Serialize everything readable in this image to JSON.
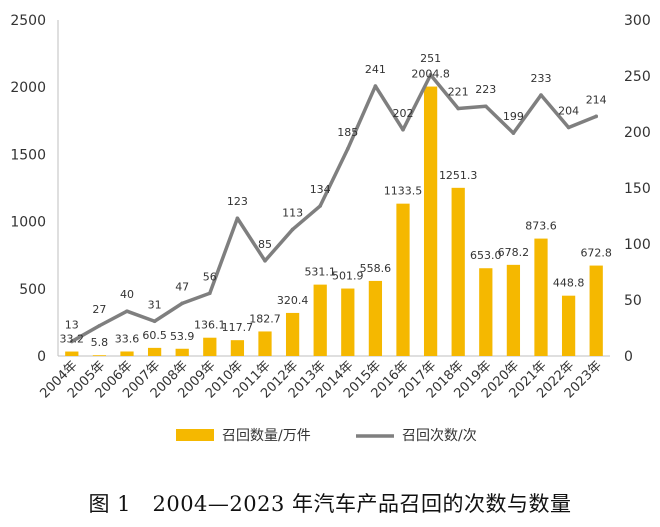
{
  "caption": "图 1　2004—2023 年汽车产品召回的次数与数量",
  "chart_data": {
    "type": "bar",
    "categories": [
      "2004年",
      "2005年",
      "2006年",
      "2007年",
      "2008年",
      "2009年",
      "2010年",
      "2011年",
      "2012年",
      "2013年",
      "2014年",
      "2015年",
      "2016年",
      "2017年",
      "2018年",
      "2019年",
      "2020年",
      "2021年",
      "2022年",
      "2023年"
    ],
    "series": [
      {
        "name": "召回数量/万件",
        "type": "bar",
        "axis": "left",
        "color": "#F5B800",
        "values": [
          33.2,
          5.8,
          33.6,
          60.5,
          53.9,
          136.1,
          117.7,
          182.7,
          320.4,
          531.1,
          501.9,
          558.6,
          1133.5,
          2004.8,
          1251.3,
          653.0,
          678.2,
          873.6,
          448.8,
          672.8
        ],
        "labels": [
          "33.2",
          "5.8",
          "33.6",
          "60.5",
          "53.9",
          "136.1",
          "117.7",
          "182.7",
          "320.4",
          "531.1",
          "501.9",
          "558.6",
          "1133.5",
          "2004.8",
          "1251.3",
          "653.0",
          "678.2",
          "873.6",
          "448.8",
          "672.8"
        ]
      },
      {
        "name": "召回次数/次",
        "type": "line",
        "axis": "right",
        "color": "#7F7F7F",
        "values": [
          13,
          27,
          40,
          31,
          47,
          56,
          123,
          85,
          113,
          134,
          185,
          241,
          202,
          251,
          221,
          223,
          199,
          233,
          204,
          214
        ]
      }
    ],
    "y_left": {
      "min": 0,
      "max": 2500,
      "ticks": [
        "0",
        "500",
        "1000",
        "1500",
        "2000",
        "2500"
      ]
    },
    "y_right": {
      "min": 0,
      "max": 300,
      "ticks": [
        "0",
        "50",
        "100",
        "150",
        "200",
        "250",
        "300"
      ]
    },
    "grid": false,
    "legend": "bottom-center"
  }
}
